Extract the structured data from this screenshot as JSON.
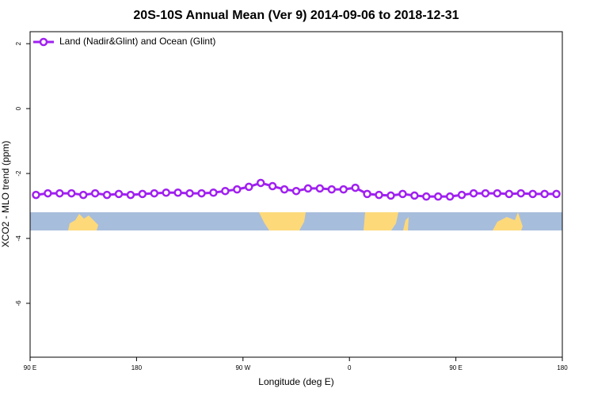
{
  "chart_data": {
    "type": "line",
    "title": "20S-10S Annual Mean (Ver 9)   2014-09-06 to 2018-12-31",
    "x_label": "Longitude (deg E)",
    "y_label": "XCO2 - MLO trend (ppm)",
    "x": [
      95,
      105,
      115,
      125,
      135,
      145,
      155,
      165,
      175,
      185,
      195,
      205,
      215,
      225,
      235,
      245,
      255,
      265,
      275,
      285,
      295,
      305,
      315,
      325,
      335,
      345,
      355,
      365,
      375,
      385,
      395,
      405,
      415,
      425,
      435,
      445,
      455,
      465,
      475,
      485,
      495,
      505,
      515,
      525,
      535
    ],
    "series": [
      {
        "name": "Land (Nadir&Glint) and Ocean (Glint)",
        "color": "#a020f0",
        "values": [
          -2.66,
          -2.61,
          -2.61,
          -2.61,
          -2.66,
          -2.61,
          -2.66,
          -2.63,
          -2.66,
          -2.63,
          -2.61,
          -2.59,
          -2.59,
          -2.61,
          -2.61,
          -2.59,
          -2.54,
          -2.49,
          -2.41,
          -2.29,
          -2.39,
          -2.49,
          -2.54,
          -2.46,
          -2.46,
          -2.49,
          -2.49,
          -2.44,
          -2.63,
          -2.66,
          -2.68,
          -2.63,
          -2.68,
          -2.71,
          -2.71,
          -2.71,
          -2.66,
          -2.61,
          -2.61,
          -2.61,
          -2.63,
          -2.61,
          -2.63,
          -2.63,
          -2.63
        ]
      }
    ],
    "xlim": [
      90,
      540
    ],
    "xticks": [
      {
        "value": 90,
        "label": "90 E"
      },
      180,
      {
        "value": 270,
        "label": "90 W"
      },
      {
        "value": 360,
        "label": "0"
      },
      {
        "value": 450,
        "label": "90 E"
      },
      {
        "value": 540,
        "label": "180"
      }
    ],
    "ylim": [
      -7.66,
      2.37
    ],
    "yticks": [
      2,
      0,
      -2,
      -4,
      -6
    ],
    "legend": "top-left",
    "grid": false
  }
}
